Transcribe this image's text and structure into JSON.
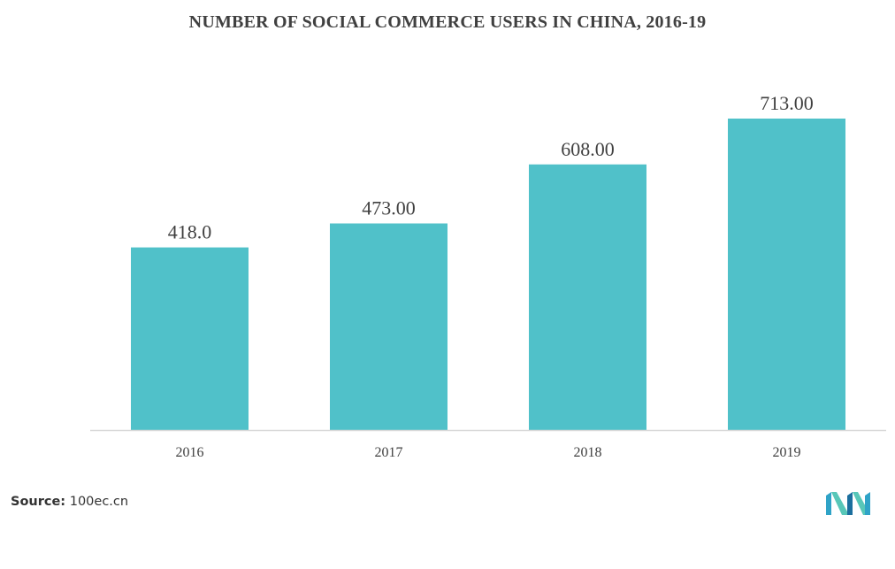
{
  "chart_data": {
    "type": "bar",
    "title": "NUMBER OF SOCIAL COMMERCE USERS IN CHINA, 2016-19",
    "categories": [
      "2016",
      "2017",
      "2018",
      "2019"
    ],
    "values": [
      418.0,
      473.0,
      608.0,
      713.0
    ],
    "value_labels": [
      "418.0",
      "473.00",
      "608.00",
      "713.00"
    ],
    "xlabel": "",
    "ylabel": "",
    "ylim": [
      0,
      800
    ],
    "grid": false,
    "legend": "none",
    "bar_color": "#50C1C9",
    "axis_color": "#D9D9D9"
  },
  "source": {
    "label": "Source:",
    "text": "100ec.cn"
  },
  "logo": {
    "icon": "mordor-intelligence-logo-icon",
    "colors": [
      "#2FA3C7",
      "#58C7B8",
      "#1C6F9E"
    ]
  }
}
